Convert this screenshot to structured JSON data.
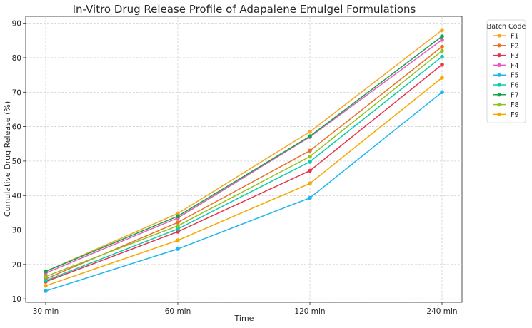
{
  "chart_data": {
    "type": "line",
    "title": "In-Vitro Drug Release Profile of Adapalene Emulgel Formulations",
    "xlabel": "Time",
    "ylabel": "Cumulative Drug Release (%)",
    "categories": [
      "30 min",
      "60 min",
      "120 min",
      "240 min"
    ],
    "ylim": [
      9,
      92
    ],
    "yticks": [
      10,
      20,
      30,
      40,
      50,
      60,
      70,
      80,
      90
    ],
    "grid": true,
    "legend": {
      "title": "Batch Code",
      "placement": "outside-top-right"
    },
    "series": [
      {
        "name": "F1",
        "color": "#f5a623",
        "values": [
          18.0,
          34.8,
          58.5,
          88.0
        ]
      },
      {
        "name": "F2",
        "color": "#e8702a",
        "values": [
          15.8,
          32.2,
          53.0,
          83.2
        ]
      },
      {
        "name": "F3",
        "color": "#e6344e",
        "values": [
          15.0,
          29.5,
          47.2,
          78.0
        ]
      },
      {
        "name": "F4",
        "color": "#e85ac0",
        "values": [
          17.5,
          33.5,
          57.0,
          85.2
        ]
      },
      {
        "name": "F5",
        "color": "#1fb6f0",
        "values": [
          12.3,
          24.5,
          39.3,
          70.0
        ]
      },
      {
        "name": "F6",
        "color": "#0ec9b0",
        "values": [
          15.3,
          30.3,
          49.8,
          80.3
        ]
      },
      {
        "name": "F7",
        "color": "#14a44d",
        "values": [
          18.0,
          34.0,
          57.2,
          86.2
        ]
      },
      {
        "name": "F8",
        "color": "#8fc31f",
        "values": [
          16.5,
          31.2,
          51.3,
          82.0
        ]
      },
      {
        "name": "F9",
        "color": "#f5a800",
        "values": [
          13.8,
          27.0,
          43.5,
          74.2
        ]
      }
    ]
  }
}
